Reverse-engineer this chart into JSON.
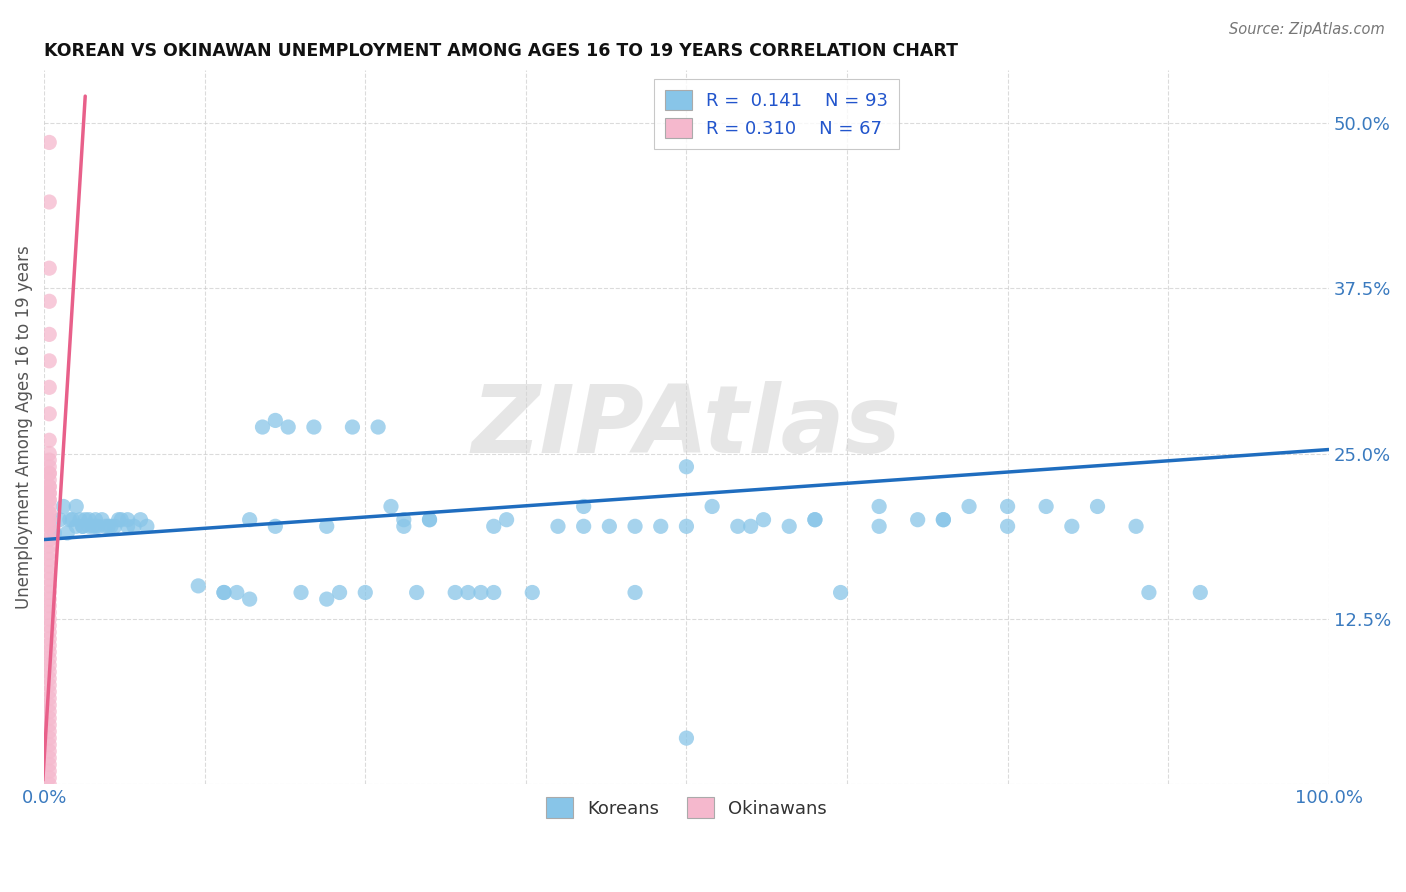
{
  "title": "KOREAN VS OKINAWAN UNEMPLOYMENT AMONG AGES 16 TO 19 YEARS CORRELATION CHART",
  "source": "Source: ZipAtlas.com",
  "ylabel": "Unemployment Among Ages 16 to 19 years",
  "xlim": [
    0.0,
    1.0
  ],
  "ylim": [
    0.0,
    0.54
  ],
  "ytick_vals": [
    0.0,
    0.125,
    0.25,
    0.375,
    0.5
  ],
  "ytick_labels": [
    "",
    "12.5%",
    "25.0%",
    "37.5%",
    "50.0%"
  ],
  "xtick_vals": [
    0.0,
    0.125,
    0.25,
    0.375,
    0.5,
    0.625,
    0.75,
    0.875,
    1.0
  ],
  "xtick_labels": [
    "0.0%",
    "",
    "",
    "",
    "",
    "",
    "",
    "",
    "100.0%"
  ],
  "legend_R": [
    "0.141",
    "0.310"
  ],
  "legend_N": [
    "93",
    "67"
  ],
  "blue_color": "#88c5e8",
  "pink_color": "#f5b8cd",
  "blue_line_color": "#1f6dbf",
  "pink_line_color": "#e8608a",
  "watermark": "ZIPAtlas",
  "grid_color": "#cccccc",
  "korean_x": [
    0.008,
    0.012,
    0.015,
    0.018,
    0.02,
    0.022,
    0.025,
    0.025,
    0.028,
    0.03,
    0.03,
    0.032,
    0.035,
    0.035,
    0.038,
    0.04,
    0.04,
    0.042,
    0.045,
    0.048,
    0.05,
    0.052,
    0.055,
    0.058,
    0.06,
    0.065,
    0.065,
    0.07,
    0.075,
    0.08,
    0.12,
    0.14,
    0.15,
    0.16,
    0.17,
    0.18,
    0.19,
    0.2,
    0.21,
    0.22,
    0.23,
    0.24,
    0.25,
    0.26,
    0.27,
    0.28,
    0.29,
    0.3,
    0.3,
    0.32,
    0.33,
    0.34,
    0.35,
    0.36,
    0.38,
    0.4,
    0.42,
    0.44,
    0.46,
    0.48,
    0.5,
    0.5,
    0.52,
    0.54,
    0.56,
    0.58,
    0.6,
    0.62,
    0.65,
    0.68,
    0.7,
    0.72,
    0.75,
    0.78,
    0.82,
    0.86,
    0.9,
    0.35,
    0.28,
    0.22,
    0.18,
    0.16,
    0.14,
    0.42,
    0.46,
    0.5,
    0.55,
    0.6,
    0.65,
    0.7,
    0.75,
    0.8,
    0.85
  ],
  "korean_y": [
    0.19,
    0.2,
    0.21,
    0.19,
    0.2,
    0.2,
    0.195,
    0.21,
    0.2,
    0.195,
    0.195,
    0.2,
    0.195,
    0.2,
    0.195,
    0.195,
    0.2,
    0.195,
    0.2,
    0.195,
    0.195,
    0.195,
    0.195,
    0.2,
    0.2,
    0.195,
    0.2,
    0.195,
    0.2,
    0.195,
    0.15,
    0.145,
    0.145,
    0.14,
    0.27,
    0.275,
    0.27,
    0.145,
    0.27,
    0.14,
    0.145,
    0.27,
    0.145,
    0.27,
    0.21,
    0.2,
    0.145,
    0.2,
    0.2,
    0.145,
    0.145,
    0.145,
    0.145,
    0.2,
    0.145,
    0.195,
    0.21,
    0.195,
    0.145,
    0.195,
    0.24,
    0.035,
    0.21,
    0.195,
    0.2,
    0.195,
    0.2,
    0.145,
    0.21,
    0.2,
    0.2,
    0.21,
    0.21,
    0.21,
    0.21,
    0.145,
    0.145,
    0.195,
    0.195,
    0.195,
    0.195,
    0.2,
    0.145,
    0.195,
    0.195,
    0.195,
    0.195,
    0.2,
    0.195,
    0.2,
    0.195,
    0.195,
    0.195
  ],
  "okinawan_x": [
    0.004,
    0.004,
    0.004,
    0.004,
    0.004,
    0.004,
    0.004,
    0.004,
    0.004,
    0.004,
    0.004,
    0.004,
    0.004,
    0.004,
    0.004,
    0.004,
    0.004,
    0.004,
    0.004,
    0.004,
    0.004,
    0.004,
    0.004,
    0.004,
    0.004,
    0.004,
    0.004,
    0.004,
    0.004,
    0.004,
    0.004,
    0.004,
    0.004,
    0.004,
    0.004,
    0.004,
    0.004,
    0.004,
    0.004,
    0.004,
    0.004,
    0.004,
    0.004,
    0.004,
    0.004,
    0.004,
    0.004,
    0.004,
    0.004,
    0.004,
    0.004,
    0.004,
    0.004,
    0.004,
    0.004,
    0.004,
    0.004,
    0.004,
    0.004,
    0.004,
    0.004,
    0.004,
    0.004,
    0.004,
    0.004,
    0.004,
    0.004
  ],
  "okinawan_y": [
    0.485,
    0.44,
    0.39,
    0.365,
    0.34,
    0.32,
    0.3,
    0.28,
    0.26,
    0.25,
    0.245,
    0.235,
    0.225,
    0.22,
    0.215,
    0.205,
    0.2,
    0.195,
    0.19,
    0.185,
    0.18,
    0.175,
    0.17,
    0.165,
    0.16,
    0.155,
    0.15,
    0.145,
    0.14,
    0.135,
    0.13,
    0.125,
    0.12,
    0.115,
    0.11,
    0.105,
    0.1,
    0.095,
    0.09,
    0.085,
    0.08,
    0.075,
    0.07,
    0.065,
    0.06,
    0.055,
    0.05,
    0.045,
    0.04,
    0.035,
    0.03,
    0.025,
    0.02,
    0.015,
    0.01,
    0.005,
    0.0,
    0.195,
    0.2,
    0.205,
    0.21,
    0.215,
    0.22,
    0.225,
    0.23,
    0.235,
    0.24
  ],
  "korean_line_x": [
    0.0,
    1.0
  ],
  "korean_line_y": [
    0.185,
    0.253
  ],
  "okinawan_line_x": [
    -0.001,
    0.032
  ],
  "okinawan_line_y": [
    0.003,
    0.52
  ]
}
